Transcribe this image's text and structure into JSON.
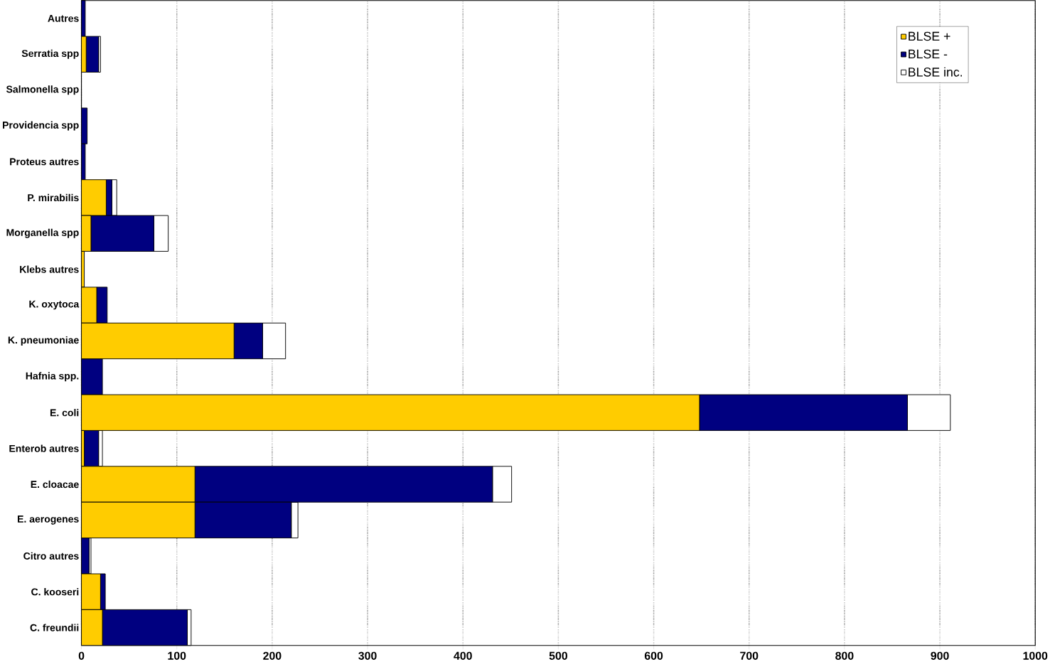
{
  "chart_data": {
    "type": "bar",
    "orientation": "horizontal",
    "stacked": true,
    "categories": [
      "Autres",
      "Serratia spp",
      "Salmonella spp",
      "Providencia spp",
      "Proteus autres",
      "P. mirabilis",
      "Morganella spp",
      "Klebs autres",
      "K. oxytoca",
      "K. pneumoniae",
      "Hafnia spp.",
      "E. coli",
      "Enterob autres",
      "E. cloacae",
      "E. aerogenes",
      "Citro  autres",
      "C. kooseri",
      "C. freundii"
    ],
    "series": [
      {
        "name": "BLSE +",
        "color": "#ffcc00",
        "values": [
          0,
          5,
          0,
          0,
          0,
          26,
          10,
          3,
          16,
          160,
          0,
          648,
          3,
          119,
          119,
          0,
          20,
          22
        ]
      },
      {
        "name": "BLSE -",
        "color": "#000080",
        "values": [
          4,
          13,
          0,
          6,
          4,
          6,
          66,
          0,
          11,
          30,
          22,
          218,
          15,
          312,
          101,
          8,
          5,
          89
        ]
      },
      {
        "name": "BLSE inc.",
        "color": "#ffffff",
        "values": [
          0,
          2,
          0,
          0,
          0,
          5,
          15,
          0,
          0,
          24,
          0,
          45,
          4,
          20,
          7,
          2,
          0,
          4
        ]
      }
    ],
    "xlim": [
      0,
      1000
    ],
    "xticks": [
      0,
      100,
      200,
      300,
      400,
      500,
      600,
      700,
      800,
      900,
      1000
    ],
    "grid": "x",
    "legend": "top right"
  }
}
